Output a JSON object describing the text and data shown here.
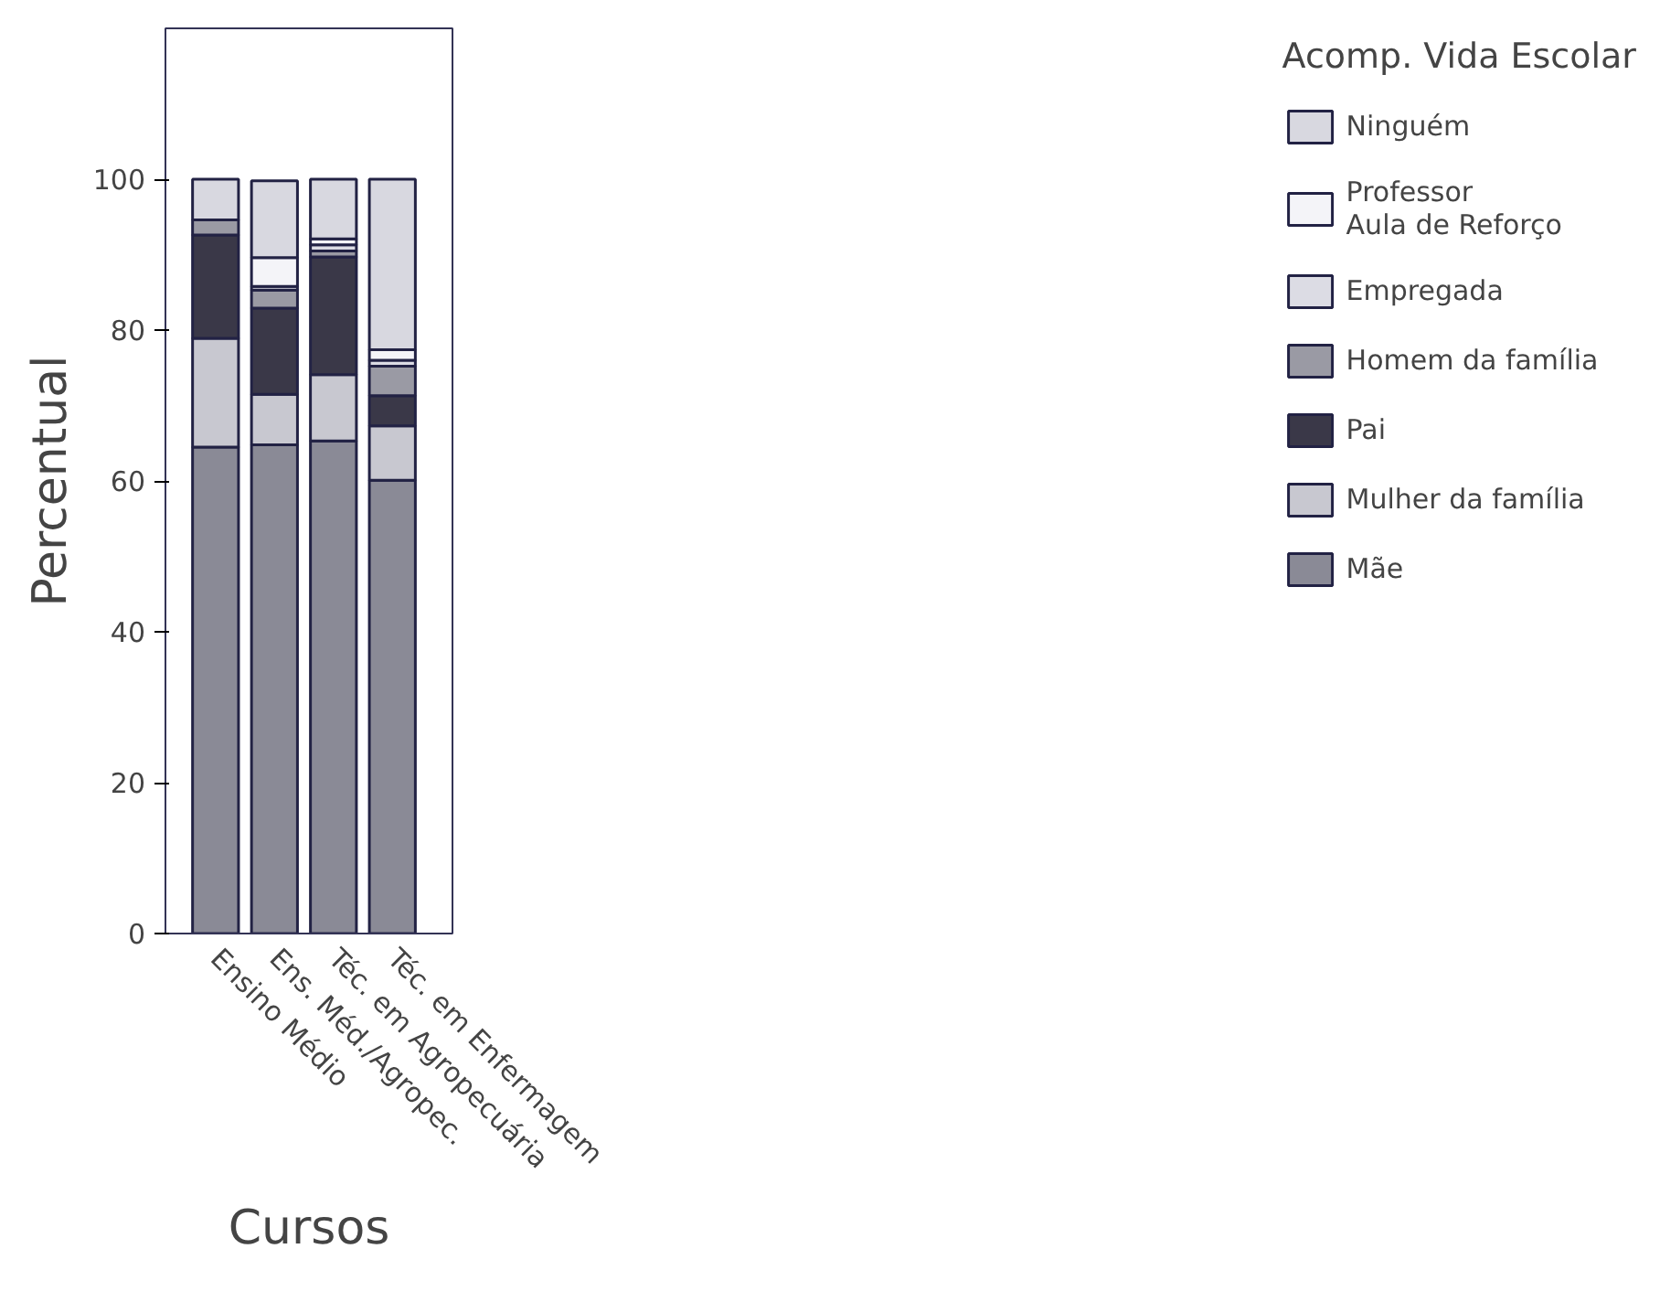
{
  "chart_data": {
    "type": "bar",
    "stacked": true,
    "xlabel": "Cursos",
    "ylabel": "Percentual",
    "legend_title": "Acomp. Vida Escolar",
    "legend": "right",
    "categories": [
      "Ensino Médio",
      "Ens. Méd./Agropec.",
      "Téc. em Agropecuária",
      "Téc. em Enfermagem"
    ],
    "ylim": [
      0,
      120
    ],
    "yticks": [
      0,
      20,
      40,
      60,
      80,
      100
    ],
    "grid": false,
    "series": [
      {
        "name": "Mãe",
        "color": "#8a8a96",
        "values": [
          64.5,
          64.8,
          65.3,
          60.1
        ]
      },
      {
        "name": "Mulher da família",
        "color": "#c8c8d0",
        "values": [
          14.4,
          6.7,
          8.8,
          7.2
        ]
      },
      {
        "name": "Pai",
        "color": "#3a3848",
        "values": [
          13.7,
          11.4,
          15.6,
          4.0
        ]
      },
      {
        "name": "Homem da família",
        "color": "#9a9aa4",
        "values": [
          2.0,
          2.4,
          0.8,
          3.9
        ]
      },
      {
        "name": "Empregada",
        "color": "#dcdce4",
        "values": [
          0,
          0.5,
          0.8,
          0.8
        ]
      },
      {
        "name": "Professor\nAula de Reforço",
        "color": "#f4f4f8",
        "values": [
          0,
          3.8,
          0.8,
          1.4
        ]
      },
      {
        "name": "Ninguém",
        "color": "#d8d8e0",
        "values": [
          5.4,
          10.2,
          7.9,
          22.6
        ]
      }
    ]
  }
}
